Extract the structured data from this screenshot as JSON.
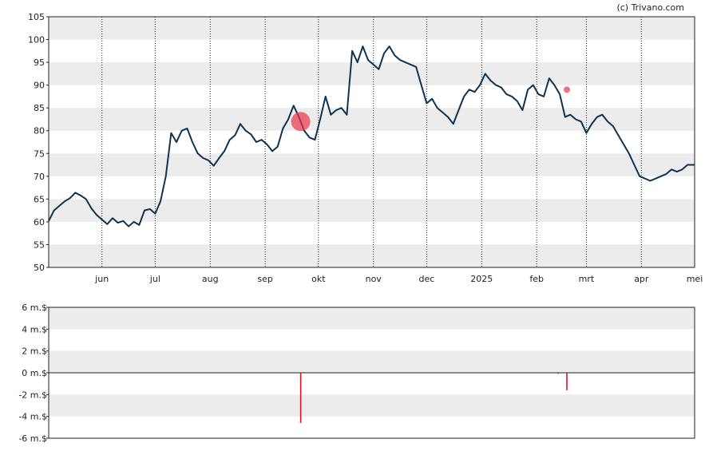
{
  "credit": "(c) Trivano.com",
  "chart_data": [
    {
      "type": "line",
      "ylim": [
        50,
        105
      ],
      "yticks": [
        50,
        55,
        60,
        65,
        70,
        75,
        80,
        85,
        90,
        95,
        100,
        105
      ],
      "ytick_labels": [
        "50",
        "55",
        "60",
        "65",
        "70",
        "75",
        "80",
        "85",
        "90",
        "95",
        "100",
        "105"
      ],
      "xlim": [
        "2024-05-02",
        "2025-05-01"
      ],
      "xticks": [
        {
          "date": "2024-06-01",
          "label": "jun"
        },
        {
          "date": "2024-07-01",
          "label": "jul"
        },
        {
          "date": "2024-08-01",
          "label": "aug"
        },
        {
          "date": "2024-09-01",
          "label": "sep"
        },
        {
          "date": "2024-10-01",
          "label": "okt"
        },
        {
          "date": "2024-11-01",
          "label": "nov"
        },
        {
          "date": "2024-12-01",
          "label": "dec"
        },
        {
          "date": "2025-01-01",
          "label": "2025"
        },
        {
          "date": "2025-02-01",
          "label": "feb"
        },
        {
          "date": "2025-03-01",
          "label": "mrt"
        },
        {
          "date": "2025-04-01",
          "label": "apr"
        },
        {
          "date": "2025-05-01",
          "label": "mei"
        }
      ],
      "grid": true,
      "line_color": "#0e3350",
      "series": [
        {
          "x": [
            "2024-05-02",
            "2024-05-05",
            "2024-05-08",
            "2024-05-11",
            "2024-05-14",
            "2024-05-17",
            "2024-05-20",
            "2024-05-23",
            "2024-05-26",
            "2024-05-29",
            "2024-06-01",
            "2024-06-04",
            "2024-06-07",
            "2024-06-10",
            "2024-06-13",
            "2024-06-16",
            "2024-06-19",
            "2024-06-22",
            "2024-06-25",
            "2024-06-28",
            "2024-07-01",
            "2024-07-04",
            "2024-07-07",
            "2024-07-10",
            "2024-07-13",
            "2024-07-16",
            "2024-07-19",
            "2024-07-22",
            "2024-07-25",
            "2024-07-28",
            "2024-07-31",
            "2024-08-03",
            "2024-08-06",
            "2024-08-09",
            "2024-08-12",
            "2024-08-15",
            "2024-08-18",
            "2024-08-21",
            "2024-08-24",
            "2024-08-27",
            "2024-08-30",
            "2024-09-02",
            "2024-09-05",
            "2024-09-08",
            "2024-09-11",
            "2024-09-14",
            "2024-09-17",
            "2024-09-20",
            "2024-09-23",
            "2024-09-26",
            "2024-09-29",
            "2024-10-02",
            "2024-10-05",
            "2024-10-08",
            "2024-10-11",
            "2024-10-14",
            "2024-10-17",
            "2024-10-20",
            "2024-10-23",
            "2024-10-26",
            "2024-10-29",
            "2024-11-01",
            "2024-11-04",
            "2024-11-07",
            "2024-11-10",
            "2024-11-13",
            "2024-11-16",
            "2024-11-19",
            "2024-11-22",
            "2024-11-25",
            "2024-11-28",
            "2024-12-01",
            "2024-12-04",
            "2024-12-07",
            "2024-12-10",
            "2024-12-13",
            "2024-12-16",
            "2024-12-19",
            "2024-12-22",
            "2024-12-25",
            "2024-12-28",
            "2024-12-31",
            "2025-01-03",
            "2025-01-06",
            "2025-01-09",
            "2025-01-12",
            "2025-01-15",
            "2025-01-18",
            "2025-01-21",
            "2025-01-24",
            "2025-01-27",
            "2025-01-30",
            "2025-02-02",
            "2025-02-05",
            "2025-02-08",
            "2025-02-11",
            "2025-02-14",
            "2025-02-17",
            "2025-02-20",
            "2025-02-23",
            "2025-02-26",
            "2025-03-01",
            "2025-03-04",
            "2025-03-07",
            "2025-03-10",
            "2025-03-13",
            "2025-03-16",
            "2025-03-19",
            "2025-03-22",
            "2025-03-25",
            "2025-03-28",
            "2025-03-31",
            "2025-04-03",
            "2025-04-06",
            "2025-04-09",
            "2025-04-12",
            "2025-04-15",
            "2025-04-18",
            "2025-04-21",
            "2025-04-24",
            "2025-04-27",
            "2025-05-01"
          ],
          "values": [
            60.2,
            62.5,
            63.5,
            64.5,
            65.2,
            66.4,
            65.8,
            65.0,
            63.0,
            61.5,
            60.5,
            59.5,
            60.8,
            59.8,
            60.2,
            59.0,
            60.0,
            59.3,
            62.5,
            62.8,
            61.8,
            64.5,
            70.0,
            79.5,
            77.5,
            80.0,
            80.5,
            77.5,
            75.0,
            74.0,
            73.5,
            72.3,
            74.0,
            75.5,
            78.0,
            79.0,
            81.5,
            80.0,
            79.2,
            77.5,
            78.0,
            77.0,
            75.5,
            76.5,
            80.5,
            82.5,
            85.5,
            83.0,
            80.0,
            78.5,
            78.0,
            82.5,
            87.5,
            83.5,
            84.5,
            85.0,
            83.5,
            97.5,
            95.0,
            98.5,
            95.5,
            94.5,
            93.5,
            97.0,
            98.5,
            96.5,
            95.5,
            95.0,
            94.5,
            94.0,
            90.0,
            86.0,
            87.0,
            85.0,
            84.0,
            83.0,
            81.5,
            84.5,
            87.5,
            89.0,
            88.5,
            90.0,
            92.5,
            91.0,
            90.0,
            89.5,
            88.0,
            87.5,
            86.5,
            84.5,
            89.0,
            90.0,
            88.0,
            87.5,
            91.5,
            90.0,
            88.0,
            83.0,
            83.5,
            82.5,
            82.0,
            79.5,
            81.5,
            83.0,
            83.5,
            82.0,
            81.0,
            79.0,
            77.0,
            75.0,
            72.5,
            70.0,
            69.5,
            69.0,
            69.5,
            70.0,
            70.5,
            71.5,
            71.0,
            71.5,
            72.5,
            72.5
          ]
        }
      ],
      "markers": [
        {
          "date": "2024-09-21",
          "value": 82.0,
          "size": "large",
          "color": "#ee3344"
        },
        {
          "date": "2025-02-18",
          "value": 89.0,
          "size": "small",
          "color": "#ee3344"
        }
      ]
    },
    {
      "type": "bar",
      "ylim": [
        -6,
        6
      ],
      "yticks": [
        -6,
        -4,
        -2,
        0,
        2,
        4,
        6
      ],
      "ytick_labels": [
        "-6 m.$",
        "-4 m.$",
        "-2 m.$",
        "0 m.$",
        "2 m.$",
        "4 m.$",
        "6 m.$"
      ],
      "bar_color": "#dd1122",
      "x": [
        "2024-09-21",
        "2024-10-22",
        "2025-02-13",
        "2025-02-18"
      ],
      "values": [
        -4.6,
        -0.05,
        -0.1,
        -1.6
      ]
    }
  ]
}
